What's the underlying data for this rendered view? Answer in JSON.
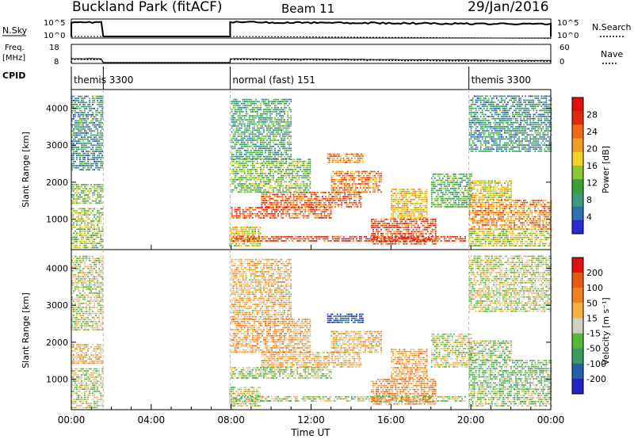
{
  "header": {
    "station": "Buckland Park (fitACF)",
    "beam": "Beam 11",
    "date": "29/Jan/2016"
  },
  "left_labels": {
    "nsky": "N.Sky",
    "freq_line1": "Freq.",
    "freq_line2": "[MHz]",
    "cpid": "CPID"
  },
  "right_labels": {
    "nsearch": "N.Search",
    "nave": "Nave"
  },
  "top_axes": {
    "nsky_ticks": [
      "10^5",
      "10^0"
    ],
    "nsearch_ticks": [
      "10^5",
      "10^0"
    ],
    "freq_ticks": [
      "18",
      "8"
    ],
    "nave_ticks": [
      "60",
      "0"
    ]
  },
  "cpid_segments": [
    {
      "label": "themis 3300",
      "start_hour": 0,
      "end_hour": 1.6
    },
    {
      "label": "normal (fast) 151",
      "start_hour": 7.95,
      "end_hour": 19.9
    },
    {
      "label": "themis 3300",
      "start_hour": 19.9,
      "end_hour": 24
    }
  ],
  "x_axis": {
    "title": "Time UT",
    "tick_labels": [
      "00:00",
      "04:00",
      "08:00",
      "12:00",
      "16:00",
      "20:00",
      "00:00"
    ],
    "tick_hours": [
      0,
      4,
      8,
      12,
      16,
      20,
      24
    ],
    "range_hours": [
      0,
      24
    ]
  },
  "colors": {
    "power": [
      "#2b2bd6",
      "#2f6fb4",
      "#3c9c7c",
      "#3aa03a",
      "#8cc832",
      "#f0d020",
      "#f0a020",
      "#ee6a15",
      "#dd2a10",
      "#e11010"
    ],
    "velocity": [
      "#2222c8",
      "#2860a8",
      "#3a9a64",
      "#54b83a",
      "#cfcfbf",
      "#f5b040",
      "#f08020",
      "#e85a14",
      "#e01010"
    ]
  },
  "chart_data": [
    {
      "type": "heatmap",
      "name": "power",
      "ylabel": "Slant Range [km]",
      "ylim": [
        180,
        4500
      ],
      "y_ticks": [
        1000,
        2000,
        3000,
        4000
      ],
      "colorbar": {
        "label": "Power [dB]",
        "tick_labels": [
          "28",
          "24",
          "20",
          "16",
          "12",
          "8",
          "4"
        ],
        "range": [
          0,
          32
        ]
      },
      "regions": [
        {
          "t0": 0.0,
          "t1": 1.6,
          "r0": 200,
          "r1": 1300,
          "level": 0.45
        },
        {
          "t0": 0.0,
          "t1": 1.6,
          "r0": 1400,
          "r1": 1900,
          "level": 0.4
        },
        {
          "t0": 0.0,
          "t1": 1.6,
          "r0": 2300,
          "r1": 4300,
          "level": 0.25
        },
        {
          "t0": 7.9,
          "t1": 9.5,
          "r0": 250,
          "r1": 800,
          "level": 0.55
        },
        {
          "t0": 8.0,
          "t1": 19.7,
          "r0": 380,
          "r1": 500,
          "level": 0.85
        },
        {
          "t0": 8.0,
          "t1": 13.0,
          "r0": 1000,
          "r1": 1300,
          "level": 0.8
        },
        {
          "t0": 9.5,
          "t1": 14.5,
          "r0": 1300,
          "r1": 1700,
          "level": 0.78
        },
        {
          "t0": 13.0,
          "t1": 15.5,
          "r0": 1700,
          "r1": 2300,
          "level": 0.72
        },
        {
          "t0": 12.8,
          "t1": 14.6,
          "r0": 2500,
          "r1": 2750,
          "level": 0.68
        },
        {
          "t0": 8.0,
          "t1": 12.0,
          "r0": 1700,
          "r1": 2600,
          "level": 0.4
        },
        {
          "t0": 8.0,
          "t1": 11.0,
          "r0": 2600,
          "r1": 4200,
          "level": 0.3
        },
        {
          "t0": 15.0,
          "t1": 18.2,
          "r0": 300,
          "r1": 1000,
          "level": 0.82
        },
        {
          "t0": 16.0,
          "t1": 17.8,
          "r0": 1000,
          "r1": 1800,
          "level": 0.6
        },
        {
          "t0": 18.0,
          "t1": 20.0,
          "r0": 1300,
          "r1": 2200,
          "level": 0.35
        },
        {
          "t0": 19.9,
          "t1": 24.0,
          "r0": 700,
          "r1": 1500,
          "level": 0.7
        },
        {
          "t0": 19.9,
          "t1": 22.0,
          "r0": 1500,
          "r1": 2000,
          "level": 0.55
        },
        {
          "t0": 19.9,
          "t1": 24.0,
          "r0": 250,
          "r1": 700,
          "level": 0.5
        },
        {
          "t0": 19.9,
          "t1": 24.0,
          "r0": 2800,
          "r1": 4300,
          "level": 0.25
        }
      ]
    },
    {
      "type": "heatmap",
      "name": "velocity",
      "ylabel": "Slant Range [km]",
      "ylim": [
        180,
        4500
      ],
      "y_ticks": [
        1000,
        2000,
        3000,
        4000
      ],
      "colorbar": {
        "label": "Velocity [m s⁻¹]",
        "tick_labels": [
          "200",
          "100",
          "50",
          "15",
          "-15",
          "-50",
          "-100",
          "-200"
        ],
        "range": [
          -250,
          250
        ]
      },
      "regions": [
        {
          "t0": 0.0,
          "t1": 1.6,
          "r0": 200,
          "r1": 1300,
          "level": 0.5
        },
        {
          "t0": 0.0,
          "t1": 1.6,
          "r0": 1400,
          "r1": 1900,
          "level": 0.6
        },
        {
          "t0": 0.0,
          "t1": 1.6,
          "r0": 2300,
          "r1": 4300,
          "level": 0.5
        },
        {
          "t0": 7.9,
          "t1": 9.5,
          "r0": 250,
          "r1": 800,
          "level": 0.5
        },
        {
          "t0": 8.0,
          "t1": 19.7,
          "r0": 380,
          "r1": 500,
          "level": 0.45
        },
        {
          "t0": 8.0,
          "t1": 13.0,
          "r0": 1000,
          "r1": 1300,
          "level": 0.45
        },
        {
          "t0": 9.5,
          "t1": 14.5,
          "r0": 1300,
          "r1": 1700,
          "level": 0.6
        },
        {
          "t0": 13.0,
          "t1": 15.5,
          "r0": 1700,
          "r1": 2300,
          "level": 0.6
        },
        {
          "t0": 12.8,
          "t1": 14.6,
          "r0": 2500,
          "r1": 2750,
          "level": 0.15
        },
        {
          "t0": 8.0,
          "t1": 12.0,
          "r0": 1700,
          "r1": 2600,
          "level": 0.65
        },
        {
          "t0": 8.0,
          "t1": 11.0,
          "r0": 2600,
          "r1": 4200,
          "level": 0.6
        },
        {
          "t0": 15.0,
          "t1": 18.2,
          "r0": 300,
          "r1": 1000,
          "level": 0.7
        },
        {
          "t0": 16.0,
          "t1": 17.8,
          "r0": 1000,
          "r1": 1800,
          "level": 0.65
        },
        {
          "t0": 18.0,
          "t1": 20.0,
          "r0": 1300,
          "r1": 2200,
          "level": 0.5
        },
        {
          "t0": 19.9,
          "t1": 24.0,
          "r0": 700,
          "r1": 1500,
          "level": 0.4
        },
        {
          "t0": 19.9,
          "t1": 22.0,
          "r0": 1500,
          "r1": 2000,
          "level": 0.45
        },
        {
          "t0": 19.9,
          "t1": 24.0,
          "r0": 250,
          "r1": 700,
          "level": 0.45
        },
        {
          "t0": 19.9,
          "t1": 24.0,
          "r0": 2800,
          "r1": 4300,
          "level": 0.5
        }
      ]
    }
  ]
}
